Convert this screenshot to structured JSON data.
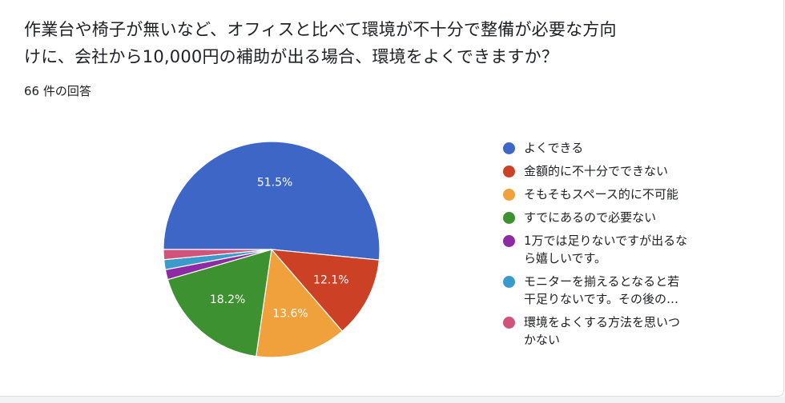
{
  "question": {
    "line1": "作業台や椅子が無いなど、オフィスと比べて環境が不十分で整備が必要な方向",
    "line2": "けに、会社から10,000円の補助が出る場合、環境をよくできますか？"
  },
  "response_count": "66 件の回答",
  "chart_data": {
    "type": "pie",
    "start_angle_note": "clockwise from 9 o'clock",
    "slices": [
      {
        "legend": [
          "よくできる"
        ],
        "value": 51.5,
        "label": "51.5%",
        "color": "#3d66c6",
        "show_label": true
      },
      {
        "legend": [
          "金額的に不十分でできない"
        ],
        "value": 12.1,
        "label": "12.1%",
        "color": "#cc4125",
        "show_label": true
      },
      {
        "legend": [
          "そもそもスペース的に不可能"
        ],
        "value": 13.6,
        "label": "13.6%",
        "color": "#f0a13c",
        "show_label": true
      },
      {
        "legend": [
          "すでにあるので必要ない"
        ],
        "value": 18.2,
        "label": "18.2%",
        "color": "#3d9130",
        "show_label": true
      },
      {
        "legend": [
          "1万では足りないですが出るな",
          "ら嬉しいです。"
        ],
        "value": 1.5,
        "label": "1.5%",
        "color": "#8e2aa4",
        "show_label": false
      },
      {
        "legend": [
          "モニターを揃えるとなると若",
          "干足りないです。その後の…"
        ],
        "value": 1.5,
        "label": "1.5%",
        "color": "#3a9ac9",
        "show_label": false
      },
      {
        "legend": [
          "環境をよくする方法を思いつ",
          "かない"
        ],
        "value": 1.5,
        "label": "1.5%",
        "color": "#d1537a",
        "show_label": false
      }
    ]
  }
}
